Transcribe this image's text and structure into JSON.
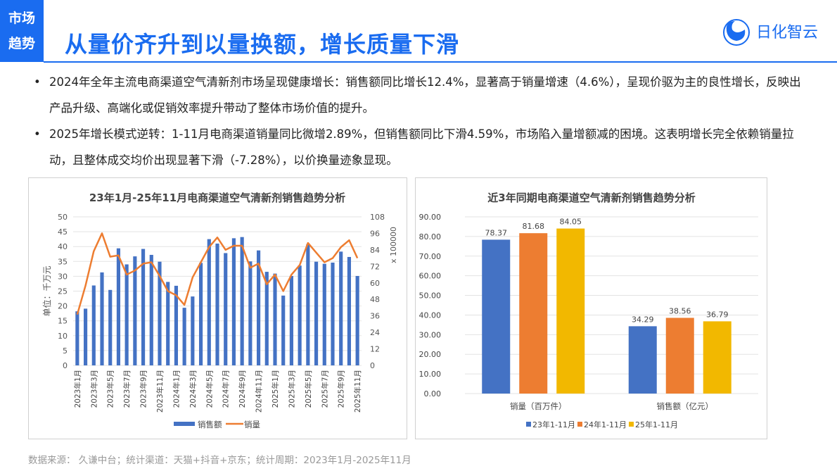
{
  "header": {
    "tag_line1": "市场",
    "tag_line2": "趋势",
    "title": "从量价齐升到以量换额，增长质量下滑",
    "logo_text": "日化智云",
    "accent": "#1a6cf0"
  },
  "bullets": [
    "2024年全年主流电商渠道空气清新剂市场呈现健康增长：销售额同比增长12.4%，显著高于销量增速（4.6%），呈现价驱为主的良性增长，反映出产品升级、高端化或促销效率提升带动了整体市场价值的提升。",
    "2025年增长模式逆转：1-11月电商渠道销量同比微增2.89%，但销售额同比下滑4.59%，市场陷入量增额减的困境。这表明增长完全依赖销量拉动，且整体成交均价出现显著下滑（-7.28%），以价换量迹象显现。"
  ],
  "footer": "数据来源：  久谦中台；统计渠道：天猫+抖音+京东；统计周期：2023年1月-2025年11月",
  "chart_data": [
    {
      "type": "bar+line",
      "title": "23年1月-25年11月电商渠道空气清新剂销售趋势分析",
      "ylabel": "单位：千万元",
      "y2label": "x 100000",
      "ylim": [
        0,
        50
      ],
      "y2lim": [
        0,
        108
      ],
      "yticks": [
        "0",
        "5",
        "10",
        "15",
        "20",
        "25",
        "30",
        "35",
        "40",
        "45",
        "50"
      ],
      "y2ticks": [
        "0",
        "12",
        "24",
        "36",
        "48",
        "60",
        "72",
        "84",
        "96",
        "108"
      ],
      "categories": [
        "2023年1月",
        "2023年2月",
        "2023年3月",
        "2023年4月",
        "2023年5月",
        "2023年6月",
        "2023年7月",
        "2023年8月",
        "2023年9月",
        "2023年10月",
        "2023年11月",
        "2023年12月",
        "2024年1月",
        "2024年2月",
        "2024年3月",
        "2024年4月",
        "2024年5月",
        "2024年6月",
        "2024年7月",
        "2024年8月",
        "2024年9月",
        "2024年10月",
        "2024年11月",
        "2024年12月",
        "2025年1月",
        "2025年2月",
        "2025年3月",
        "2025年4月",
        "2025年5月",
        "2025年6月",
        "2025年7月",
        "2025年8月",
        "2025年9月",
        "2025年10月",
        "2025年11月"
      ],
      "xticks": [
        "2023年1月",
        "2023年3月",
        "2023年5月",
        "2023年7月",
        "2023年9月",
        "2023年11月",
        "2024年1月",
        "2024年3月",
        "2024年5月",
        "2024年7月",
        "2024年9月",
        "2024年11月",
        "2025年1月",
        "2025年3月",
        "2025年5月",
        "2025年7月",
        "2025年9月",
        "2025年11月"
      ],
      "series": [
        {
          "name": "销售额",
          "axis": "left",
          "color": "#4472c4",
          "values": [
            18.2,
            19.1,
            26.9,
            31.3,
            25.4,
            39.4,
            34.0,
            36.7,
            39.2,
            37.2,
            34.9,
            28.1,
            26.8,
            19.4,
            23.2,
            34.5,
            42.5,
            41.0,
            37.8,
            42.8,
            43.2,
            35.0,
            38.7,
            31.5,
            30.9,
            23.5,
            30.1,
            33.6,
            40.8,
            34.9,
            34.2,
            34.6,
            38.3,
            36.5,
            30.1
          ]
        },
        {
          "name": "销量",
          "axis": "right",
          "color": "#ed7d31",
          "values": [
            37,
            58,
            83,
            96,
            79,
            80,
            66,
            69,
            74,
            75,
            65,
            54,
            51,
            44,
            64,
            75,
            86,
            93,
            84,
            87,
            87,
            71,
            74,
            59,
            66,
            54,
            66,
            73,
            89,
            82,
            75,
            78,
            86,
            91,
            78
          ]
        }
      ],
      "legend": "bottom",
      "grid": true
    },
    {
      "type": "bar",
      "title": "近3年同期电商渠道空气清新剂销售趋势分析",
      "ylim": [
        0,
        90
      ],
      "yticks": [
        "0.00",
        "10.00",
        "20.00",
        "30.00",
        "40.00",
        "50.00",
        "60.00",
        "70.00",
        "80.00",
        "90.00"
      ],
      "categories": [
        "销量（百万件）",
        "销售额（亿元）"
      ],
      "series": [
        {
          "name": "23年1-11月",
          "color": "#4472c4",
          "values": [
            78.37,
            34.29
          ],
          "labels": [
            "78.37",
            "34.29"
          ]
        },
        {
          "name": "24年1-11月",
          "color": "#ed7d31",
          "values": [
            81.68,
            38.56
          ],
          "labels": [
            "81.68",
            "38.56"
          ]
        },
        {
          "name": "25年1-11月",
          "color": "#f2b800",
          "values": [
            84.05,
            36.79
          ],
          "labels": [
            "84.05",
            "36.79"
          ]
        }
      ],
      "legend": "bottom",
      "grid": true
    }
  ]
}
